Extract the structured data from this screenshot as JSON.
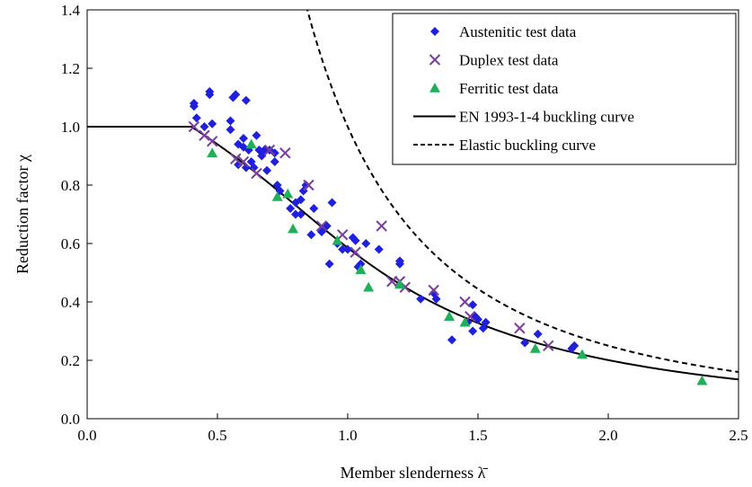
{
  "chart_data": {
    "type": "scatter",
    "xlabel": "Member slenderness λ̄",
    "ylabel": "Reduction factor χ",
    "xlim": [
      0,
      2.5
    ],
    "ylim": [
      0,
      1.4
    ],
    "xticks": [
      "0.0",
      "0.5",
      "1.0",
      "1.5",
      "2.0",
      "2.5"
    ],
    "yticks": [
      "0.0",
      "0.2",
      "0.4",
      "0.6",
      "0.8",
      "1.0",
      "1.2",
      "1.4"
    ],
    "grid": false,
    "legend_position": "top-right",
    "series": [
      {
        "name": "Austenitic test data",
        "marker": "diamond",
        "color": "#1f1fe0",
        "points": [
          [
            0.41,
            1.08
          ],
          [
            0.41,
            1.07
          ],
          [
            0.42,
            1.03
          ],
          [
            0.45,
            1.0
          ],
          [
            0.47,
            1.12
          ],
          [
            0.47,
            1.11
          ],
          [
            0.48,
            1.01
          ],
          [
            0.55,
            1.02
          ],
          [
            0.55,
            0.99
          ],
          [
            0.56,
            1.1
          ],
          [
            0.57,
            1.11
          ],
          [
            0.58,
            0.94
          ],
          [
            0.58,
            0.87
          ],
          [
            0.6,
            0.96
          ],
          [
            0.6,
            0.93
          ],
          [
            0.61,
            1.09
          ],
          [
            0.61,
            0.86
          ],
          [
            0.62,
            0.92
          ],
          [
            0.63,
            0.88
          ],
          [
            0.64,
            0.86
          ],
          [
            0.65,
            0.97
          ],
          [
            0.66,
            0.92
          ],
          [
            0.67,
            0.9
          ],
          [
            0.68,
            0.92
          ],
          [
            0.69,
            0.85
          ],
          [
            0.7,
            0.92
          ],
          [
            0.72,
            0.91
          ],
          [
            0.72,
            0.88
          ],
          [
            0.73,
            0.8
          ],
          [
            0.74,
            0.78
          ],
          [
            0.78,
            0.72
          ],
          [
            0.8,
            0.74
          ],
          [
            0.8,
            0.7
          ],
          [
            0.82,
            0.75
          ],
          [
            0.82,
            0.7
          ],
          [
            0.83,
            0.78
          ],
          [
            0.84,
            0.8
          ],
          [
            0.86,
            0.63
          ],
          [
            0.87,
            0.72
          ],
          [
            0.9,
            0.64
          ],
          [
            0.92,
            0.66
          ],
          [
            0.93,
            0.53
          ],
          [
            0.94,
            0.74
          ],
          [
            0.96,
            0.6
          ],
          [
            0.98,
            0.58
          ],
          [
            1.0,
            0.58
          ],
          [
            1.02,
            0.62
          ],
          [
            1.03,
            0.61
          ],
          [
            1.04,
            0.52
          ],
          [
            1.05,
            0.53
          ],
          [
            1.07,
            0.6
          ],
          [
            1.12,
            0.58
          ],
          [
            1.2,
            0.54
          ],
          [
            1.2,
            0.53
          ],
          [
            1.28,
            0.41
          ],
          [
            1.33,
            0.43
          ],
          [
            1.34,
            0.41
          ],
          [
            1.4,
            0.27
          ],
          [
            1.46,
            0.33
          ],
          [
            1.48,
            0.39
          ],
          [
            1.48,
            0.3
          ],
          [
            1.49,
            0.35
          ],
          [
            1.5,
            0.34
          ],
          [
            1.52,
            0.31
          ],
          [
            1.53,
            0.33
          ],
          [
            1.68,
            0.26
          ],
          [
            1.73,
            0.29
          ],
          [
            1.86,
            0.24
          ],
          [
            1.87,
            0.25
          ]
        ]
      },
      {
        "name": "Duplex test data",
        "marker": "x",
        "color": "#7a3f9b",
        "points": [
          [
            0.41,
            1.0
          ],
          [
            0.45,
            0.97
          ],
          [
            0.48,
            0.95
          ],
          [
            0.57,
            0.89
          ],
          [
            0.6,
            0.88
          ],
          [
            0.65,
            0.84
          ],
          [
            0.7,
            0.92
          ],
          [
            0.76,
            0.91
          ],
          [
            0.85,
            0.8
          ],
          [
            0.9,
            0.66
          ],
          [
            0.98,
            0.63
          ],
          [
            1.03,
            0.57
          ],
          [
            1.13,
            0.66
          ],
          [
            1.17,
            0.47
          ],
          [
            1.2,
            0.47
          ],
          [
            1.22,
            0.45
          ],
          [
            1.33,
            0.44
          ],
          [
            1.45,
            0.4
          ],
          [
            1.47,
            0.35
          ],
          [
            1.66,
            0.31
          ],
          [
            1.77,
            0.25
          ]
        ]
      },
      {
        "name": "Ferritic test data",
        "marker": "triangle",
        "color": "#20b05a",
        "points": [
          [
            0.48,
            0.91
          ],
          [
            0.63,
            0.94
          ],
          [
            0.73,
            0.76
          ],
          [
            0.77,
            0.77
          ],
          [
            0.79,
            0.65
          ],
          [
            0.96,
            0.61
          ],
          [
            1.05,
            0.51
          ],
          [
            1.08,
            0.45
          ],
          [
            1.2,
            0.46
          ],
          [
            1.39,
            0.35
          ],
          [
            1.45,
            0.33
          ],
          [
            1.72,
            0.24
          ],
          [
            1.9,
            0.22
          ],
          [
            2.36,
            0.13
          ]
        ]
      }
    ],
    "curves": [
      {
        "name": "EN 1993-1-4 buckling curve",
        "style": "solid",
        "color": "#000000"
      },
      {
        "name": "Elastic buckling curve",
        "style": "dashed",
        "color": "#000000"
      }
    ]
  }
}
